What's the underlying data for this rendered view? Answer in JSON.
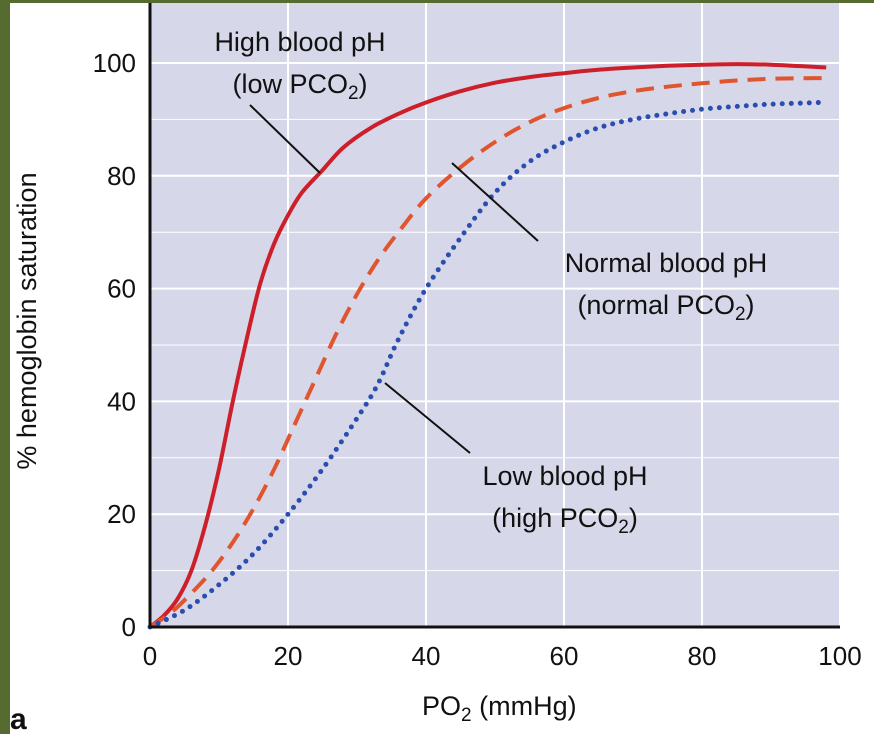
{
  "chart_data": {
    "type": "line",
    "panel_label": "a",
    "xlabel": {
      "main": "PO",
      "sub": "2",
      "rest": " (mmHg)"
    },
    "ylabel": "% hemoglobin saturation",
    "xlim": [
      0,
      100
    ],
    "ylim": [
      0,
      100
    ],
    "x_ticks": [
      "0",
      "20",
      "40",
      "60",
      "80",
      "100"
    ],
    "y_ticks": [
      "0",
      "20",
      "40",
      "60",
      "80",
      "100"
    ],
    "grid": true,
    "colors": {
      "plot_bg": "#d6d7e8",
      "grid": "#ffffff",
      "axis": "#111111",
      "frame": "#556b2f"
    },
    "series": [
      {
        "name": "High blood pH (low PCO2)",
        "color": "#cc1f2a",
        "style": "solid",
        "x": [
          0,
          2,
          4,
          6,
          8,
          10,
          12,
          14,
          16,
          18,
          20,
          22,
          25,
          28,
          32,
          36,
          40,
          45,
          50,
          55,
          60,
          65,
          70,
          75,
          80,
          85,
          90,
          95,
          98
        ],
        "y": [
          0,
          2,
          5,
          10,
          18,
          28,
          40,
          51,
          61,
          68,
          73,
          77,
          81,
          85,
          88.5,
          91,
          93,
          95,
          96.5,
          97.5,
          98.2,
          98.8,
          99.2,
          99.5,
          99.7,
          99.8,
          99.7,
          99.4,
          99.2
        ]
      },
      {
        "name": "Normal blood pH (normal PCO2)",
        "color": "#e0552e",
        "style": "dashed",
        "x": [
          0,
          3,
          6,
          9,
          12,
          15,
          18,
          21,
          24,
          27,
          30,
          33,
          36,
          40,
          45,
          50,
          55,
          60,
          65,
          70,
          75,
          80,
          85,
          90,
          95,
          98
        ],
        "y": [
          0,
          2.5,
          6,
          10,
          15,
          21,
          28,
          36,
          44,
          52,
          59,
          65,
          70,
          76,
          81.5,
          86,
          89.5,
          92,
          93.8,
          95,
          95.8,
          96.4,
          96.9,
          97.2,
          97.3,
          97.3
        ]
      },
      {
        "name": "Low blood pH (high PCO2)",
        "color": "#2a4db0",
        "style": "dotted",
        "x": [
          0,
          5,
          10,
          15,
          20,
          25,
          30,
          33,
          36,
          40,
          45,
          50,
          55,
          60,
          65,
          70,
          75,
          80,
          85,
          90,
          95,
          97
        ],
        "y": [
          0,
          3,
          7.5,
          13,
          20,
          28,
          37,
          43,
          51,
          60,
          69,
          77,
          82.5,
          86,
          88.5,
          90,
          91,
          91.8,
          92.3,
          92.7,
          92.9,
          93
        ]
      }
    ],
    "annotations": [
      {
        "id": "high",
        "line1": "High blood pH",
        "line2_main": "(low PCO",
        "line2_sub": "2",
        "line2_end": ")"
      },
      {
        "id": "normal",
        "line1": "Normal blood pH",
        "line2_main": "(normal PCO",
        "line2_sub": "2",
        "line2_end": ")"
      },
      {
        "id": "low",
        "line1": "Low blood pH",
        "line2_main": "(high PCO",
        "line2_sub": "2",
        "line2_end": ")"
      }
    ]
  }
}
